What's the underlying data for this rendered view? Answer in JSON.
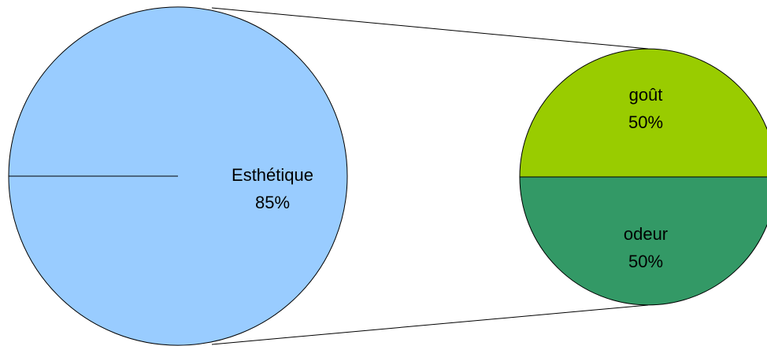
{
  "chart_data": {
    "type": "pie",
    "variant": "bar-of-pie",
    "title": "",
    "main_pie": {
      "slices": [
        {
          "label": "Esthétique",
          "value_label": "85%",
          "value": 85,
          "color": "#99ccff"
        },
        {
          "label": "",
          "value_label": "",
          "value": 15,
          "color": "#99ccff",
          "exploded_into_secondary": true
        }
      ]
    },
    "secondary_pie": {
      "slices": [
        {
          "label": "goût",
          "value_label": "50%",
          "value": 50,
          "color": "#99cc00"
        },
        {
          "label": "odeur",
          "value_label": "50%",
          "value": 50,
          "color": "#339966"
        }
      ]
    },
    "legend": "none",
    "colors": {
      "outline": "#000000",
      "background": "#ffffff"
    }
  }
}
